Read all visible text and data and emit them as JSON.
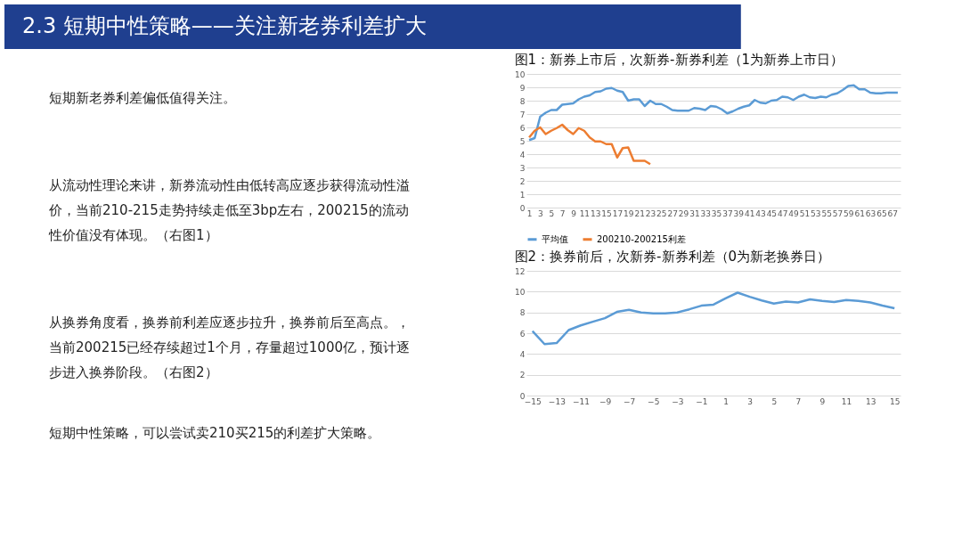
{
  "chart_data": [
    {
      "type": "other",
      "title": "2.3   短期中性策略——关注新老券利差扩大",
      "annotations": [
        "短期新老券利差偏低值得关注。",
        "从流动性理论来讲，新券流动性由低转高应逐步获得流动性溢价，当前210-215走势持续走低至3bp左右，200215的流动性价值没有体现。（右图1）",
        "从换券角度看，换券前利差应逐步拉升，换券前后至高点。，当前200215已经存续超过1个月，存量超过1000亿，预计逐步进入换券阶段。（右图2）",
        "短期中性策略，可以尝试卖210买215的利差扩大策略。"
      ]
    },
    {
      "type": "line",
      "title": "图1：新券上市后，次新券-新券利差（1为新券上市日）",
      "x": [
        1,
        2,
        3,
        4,
        5,
        6,
        7,
        8,
        9,
        10,
        11,
        12,
        13,
        14,
        15,
        16,
        17,
        18,
        19,
        20,
        21,
        22,
        23,
        24,
        25,
        26,
        27,
        28,
        29,
        30,
        31,
        32,
        33,
        34,
        35,
        36,
        37,
        38,
        39,
        40,
        41,
        42,
        43,
        44,
        45,
        46,
        47,
        48,
        49,
        50,
        51,
        52,
        53,
        54,
        55,
        56,
        57,
        58,
        59,
        60,
        61,
        62,
        63,
        64,
        65,
        66,
        67,
        68
      ],
      "xlim": [
        0.5,
        68.5
      ],
      "xticks": [
        1,
        3,
        5,
        7,
        9,
        11,
        13,
        15,
        17,
        19,
        21,
        23,
        25,
        27,
        29,
        31,
        33,
        35,
        37,
        39,
        41,
        43,
        45,
        47,
        49,
        51,
        53,
        55,
        57,
        59,
        61,
        63,
        65,
        67
      ],
      "ylim": [
        0,
        10
      ],
      "yticks": [
        0,
        1,
        2,
        3,
        4,
        5,
        6,
        7,
        8,
        9,
        10
      ],
      "grid": "y",
      "legend": "bottom",
      "marker": "none",
      "line_style": "solid",
      "series": [
        {
          "name": "平均值",
          "color": "#5b9bd5",
          "values": [
            5.05,
            5.2,
            6.8,
            7.1,
            7.3,
            7.3,
            7.7,
            7.75,
            7.8,
            8.1,
            8.3,
            8.4,
            8.65,
            8.7,
            8.9,
            8.95,
            8.75,
            8.65,
            8.0,
            8.1,
            8.1,
            7.6,
            8.0,
            7.75,
            7.75,
            7.55,
            7.3,
            7.25,
            7.25,
            7.25,
            7.45,
            7.4,
            7.3,
            7.6,
            7.55,
            7.35,
            7.05,
            7.2,
            7.4,
            7.55,
            7.65,
            8.05,
            7.85,
            7.8,
            8.0,
            8.05,
            8.3,
            8.25,
            8.05,
            8.3,
            8.45,
            8.25,
            8.2,
            8.3,
            8.25,
            8.45,
            8.55,
            8.8,
            9.1,
            9.15,
            8.85,
            8.85,
            8.6,
            8.55,
            8.55,
            8.6,
            8.6,
            8.6
          ]
        },
        {
          "name": "200210-200215利差",
          "color": "#ed7d31",
          "values": [
            5.25,
            5.75,
            6.0,
            5.5,
            5.75,
            5.95,
            6.2,
            5.8,
            5.5,
            5.95,
            5.75,
            5.25,
            4.95,
            4.95,
            4.75,
            4.75,
            3.75,
            4.45,
            4.5,
            3.5,
            3.5,
            3.5,
            3.25,
            null,
            null,
            null,
            null,
            null,
            null,
            null,
            null,
            null,
            null,
            null,
            null,
            null,
            null,
            null,
            null,
            null,
            null,
            null,
            null,
            null,
            null,
            null,
            null,
            null,
            null,
            null,
            null,
            null,
            null,
            null,
            null,
            null,
            null,
            null,
            null,
            null,
            null,
            null,
            null,
            null,
            null,
            null,
            null,
            null
          ]
        }
      ]
    },
    {
      "type": "line",
      "title": "图2：换券前后，次新券-新券利差（0为新老换券日）",
      "x": [
        -15,
        -14,
        -13,
        -12,
        -11,
        -10,
        -9,
        -8,
        -7,
        -6,
        -5,
        -4,
        -3,
        -2,
        -1,
        0,
        1,
        2,
        3,
        4,
        5,
        6,
        7,
        8,
        9,
        10,
        11,
        12,
        13,
        14,
        15
      ],
      "xlim": [
        -15.5,
        15.5
      ],
      "xticks": [
        -15,
        -13,
        -11,
        -9,
        -7,
        -5,
        -3,
        -1,
        1,
        3,
        5,
        7,
        9,
        11,
        13,
        15
      ],
      "ylim": [
        0,
        12
      ],
      "yticks": [
        0,
        2,
        4,
        6,
        8,
        10,
        12
      ],
      "grid": "y",
      "legend": false,
      "marker": "none",
      "line_style": "solid",
      "series": [
        {
          "color": "#5b9bd5",
          "values": [
            6.2,
            4.95,
            5.05,
            6.3,
            6.75,
            7.1,
            7.45,
            8.05,
            8.25,
            8.0,
            7.9,
            7.9,
            8.0,
            8.3,
            8.65,
            8.75,
            9.35,
            9.9,
            9.5,
            9.15,
            8.85,
            9.05,
            8.95,
            9.25,
            9.1,
            9.0,
            9.2,
            9.1,
            8.95,
            8.65,
            8.4
          ]
        }
      ]
    }
  ]
}
